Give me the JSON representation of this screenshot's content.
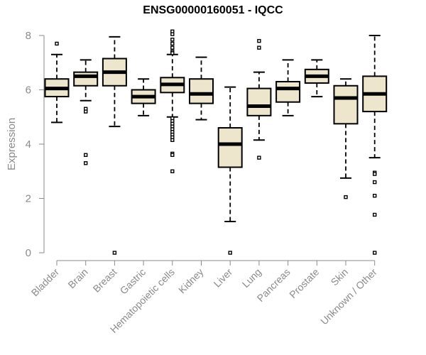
{
  "chart_data": {
    "type": "box",
    "title": "ENSG00000160051 - IQCC",
    "xlabel": "",
    "ylabel": "Expression",
    "ylim": [
      0,
      8
    ],
    "yticks": [
      0,
      2,
      4,
      6,
      8
    ],
    "grid": false,
    "box_fill": "#ede6cc",
    "categories": [
      "Bladder",
      "Brain",
      "Breast",
      "Gastric",
      "Hematopoietic cells",
      "Kidney",
      "Liver",
      "Lung",
      "Pancreas",
      "Prostate",
      "Skin",
      "Unknown / Other"
    ],
    "boxes": [
      {
        "category": "Bladder",
        "whisker_low": 4.8,
        "q1": 5.75,
        "median": 6.05,
        "q3": 6.4,
        "whisker_high": 7.3,
        "outliers": [
          7.7
        ]
      },
      {
        "category": "Brain",
        "whisker_low": 5.6,
        "q1": 6.15,
        "median": 6.5,
        "q3": 6.65,
        "whisker_high": 7.1,
        "outliers": [
          5.3,
          5.2,
          3.6,
          3.3
        ]
      },
      {
        "category": "Breast",
        "whisker_low": 4.65,
        "q1": 6.15,
        "median": 6.65,
        "q3": 7.15,
        "whisker_high": 7.95,
        "outliers": [
          0
        ]
      },
      {
        "category": "Gastric",
        "whisker_low": 5.05,
        "q1": 5.5,
        "median": 5.75,
        "q3": 6.0,
        "whisker_high": 6.4,
        "outliers": []
      },
      {
        "category": "Hematopoietic cells",
        "whisker_low": 5.0,
        "q1": 5.9,
        "median": 6.2,
        "q3": 6.45,
        "whisker_high": 7.3,
        "outliers": [
          8.15,
          8.05,
          7.85,
          7.7,
          7.55,
          7.4,
          7.35,
          4.95,
          4.85,
          4.75,
          4.65,
          4.55,
          4.45,
          4.35,
          4.25,
          4.15,
          3.65,
          3.6,
          3.0
        ]
      },
      {
        "category": "Kidney",
        "whisker_low": 4.9,
        "q1": 5.5,
        "median": 5.85,
        "q3": 6.4,
        "whisker_high": 7.2,
        "outliers": []
      },
      {
        "category": "Liver",
        "whisker_low": 1.15,
        "q1": 3.15,
        "median": 4.0,
        "q3": 4.6,
        "whisker_high": 6.1,
        "outliers": [
          0
        ]
      },
      {
        "category": "Lung",
        "whisker_low": 4.15,
        "q1": 5.05,
        "median": 5.4,
        "q3": 6.05,
        "whisker_high": 6.65,
        "outliers": [
          7.8,
          7.55,
          3.5
        ]
      },
      {
        "category": "Pancreas",
        "whisker_low": 5.05,
        "q1": 5.55,
        "median": 6.05,
        "q3": 6.3,
        "whisker_high": 7.1,
        "outliers": []
      },
      {
        "category": "Prostate",
        "whisker_low": 5.75,
        "q1": 6.25,
        "median": 6.5,
        "q3": 6.75,
        "whisker_high": 7.1,
        "outliers": []
      },
      {
        "category": "Skin",
        "whisker_low": 2.75,
        "q1": 4.75,
        "median": 5.7,
        "q3": 6.15,
        "whisker_high": 6.4,
        "outliers": [
          2.05
        ]
      },
      {
        "category": "Unknown / Other",
        "whisker_low": 3.5,
        "q1": 5.2,
        "median": 5.85,
        "q3": 6.5,
        "whisker_high": 8.0,
        "outliers": [
          2.95,
          2.9,
          2.6,
          2.1,
          1.4,
          0
        ]
      }
    ]
  }
}
